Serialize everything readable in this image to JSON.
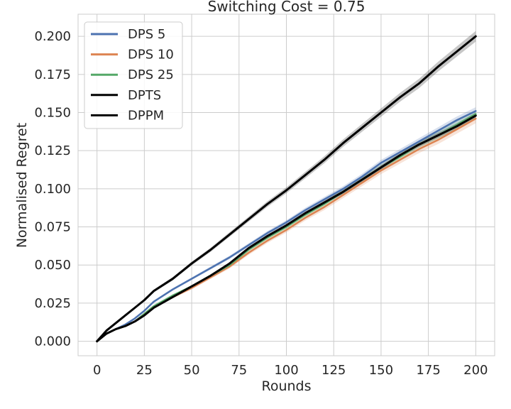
{
  "chart_data": {
    "type": "line",
    "title": "Switching Cost = 0.75",
    "xlabel": "Rounds",
    "ylabel": "Normalised Regret",
    "xlim": [
      -10,
      210
    ],
    "ylim": [
      -0.0095,
      0.2145
    ],
    "xticks": [
      0,
      25,
      50,
      75,
      100,
      125,
      150,
      175,
      200
    ],
    "xtick_labels": [
      "0",
      "25",
      "50",
      "75",
      "100",
      "125",
      "150",
      "175",
      "200"
    ],
    "yticks": [
      0.0,
      0.025,
      0.05,
      0.075,
      0.1,
      0.125,
      0.15,
      0.175,
      0.2
    ],
    "ytick_labels": [
      "0.000",
      "0.025",
      "0.050",
      "0.075",
      "0.100",
      "0.125",
      "0.150",
      "0.175",
      "0.200"
    ],
    "grid": true,
    "legend_position": "top-left",
    "x": [
      0,
      5,
      10,
      15,
      20,
      25,
      30,
      40,
      50,
      60,
      70,
      80,
      90,
      100,
      110,
      120,
      130,
      140,
      150,
      160,
      170,
      180,
      190,
      200
    ],
    "series": [
      {
        "name": "DPS 5",
        "color": "#4c72b0",
        "values": [
          0.0,
          0.005,
          0.008,
          0.011,
          0.015,
          0.02,
          0.026,
          0.034,
          0.041,
          0.048,
          0.055,
          0.063,
          0.071,
          0.078,
          0.086,
          0.093,
          0.1,
          0.108,
          0.117,
          0.124,
          0.131,
          0.138,
          0.145,
          0.151
        ],
        "band": 0.0025
      },
      {
        "name": "DPS 10",
        "color": "#dd8452",
        "values": [
          0.0,
          0.005,
          0.008,
          0.01,
          0.013,
          0.018,
          0.023,
          0.029,
          0.035,
          0.042,
          0.049,
          0.058,
          0.066,
          0.073,
          0.081,
          0.088,
          0.096,
          0.104,
          0.112,
          0.119,
          0.126,
          0.132,
          0.139,
          0.146
        ],
        "band": 0.003
      },
      {
        "name": "DPS 25",
        "color": "#55a868",
        "values": [
          0.0,
          0.005,
          0.008,
          0.01,
          0.013,
          0.018,
          0.023,
          0.03,
          0.036,
          0.043,
          0.05,
          0.06,
          0.068,
          0.075,
          0.083,
          0.09,
          0.098,
          0.106,
          0.114,
          0.121,
          0.129,
          0.135,
          0.142,
          0.149
        ],
        "band": 0.0025
      },
      {
        "name": "DPTS",
        "color": "#000000",
        "values": [
          0.0,
          0.007,
          0.012,
          0.017,
          0.022,
          0.027,
          0.033,
          0.041,
          0.051,
          0.06,
          0.07,
          0.08,
          0.09,
          0.099,
          0.109,
          0.119,
          0.13,
          0.14,
          0.15,
          0.16,
          0.169,
          0.18,
          0.19,
          0.2
        ],
        "band": 0.0035
      },
      {
        "name": "DPPM",
        "color": "#000000",
        "values": [
          0.0,
          0.005,
          0.008,
          0.01,
          0.013,
          0.017,
          0.022,
          0.029,
          0.036,
          0.043,
          0.051,
          0.061,
          0.069,
          0.076,
          0.084,
          0.091,
          0.098,
          0.106,
          0.114,
          0.122,
          0.129,
          0.135,
          0.141,
          0.148
        ],
        "band": 0.002
      }
    ]
  }
}
